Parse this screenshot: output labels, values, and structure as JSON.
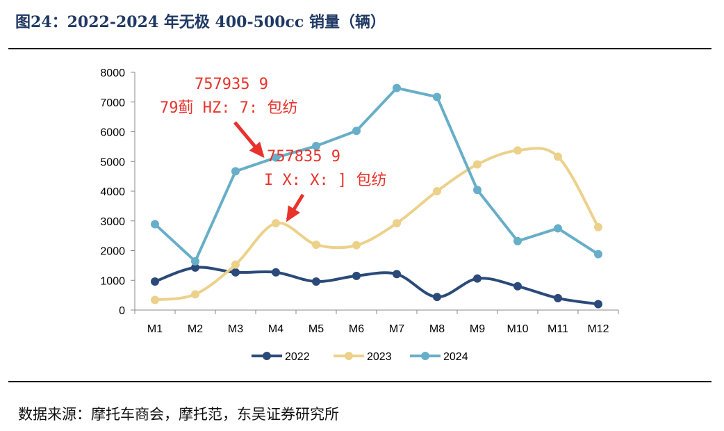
{
  "header": {
    "title": "图24：2022-2024 年无极 400-500cc 销量（辆）"
  },
  "footer": {
    "source": "数据来源：摩托车商会，摩托范，东吴证券研究所"
  },
  "annotations": [
    {
      "line1": "757935 9",
      "line2": "79蓟 HZ: 7: 包纺"
    },
    {
      "line1": "757835 9",
      "line2": "I X: X: ] 包纺"
    }
  ],
  "colors": {
    "s2022": "#2b4a7a",
    "s2023": "#ecd18a",
    "s2024": "#67aec8",
    "annotation": "#e8322b"
  },
  "chart_data": {
    "type": "line",
    "title": "2022-2024 年无极 400-500cc 销量（辆）",
    "xlabel": "",
    "ylabel": "",
    "categories": [
      "M1",
      "M2",
      "M3",
      "M4",
      "M5",
      "M6",
      "M7",
      "M8",
      "M9",
      "M10",
      "M11",
      "M12"
    ],
    "yticks": [
      "0",
      "1000",
      "2000",
      "3000",
      "4000",
      "5000",
      "6000",
      "7000",
      "8000"
    ],
    "ylim": [
      0,
      8000
    ],
    "grid": false,
    "legend": "bottom",
    "series": [
      {
        "name": "2022",
        "values": [
          960,
          1430,
          1270,
          1270,
          960,
          1150,
          1210,
          440,
          1060,
          800,
          400,
          200
        ]
      },
      {
        "name": "2023",
        "values": [
          340,
          530,
          1530,
          2920,
          2200,
          2180,
          2920,
          4000,
          4900,
          5370,
          5160,
          2790
        ]
      },
      {
        "name": "2024",
        "values": [
          2890,
          1640,
          4670,
          5130,
          5520,
          6030,
          7470,
          7170,
          4040,
          2320,
          2750,
          1880
        ]
      }
    ]
  }
}
